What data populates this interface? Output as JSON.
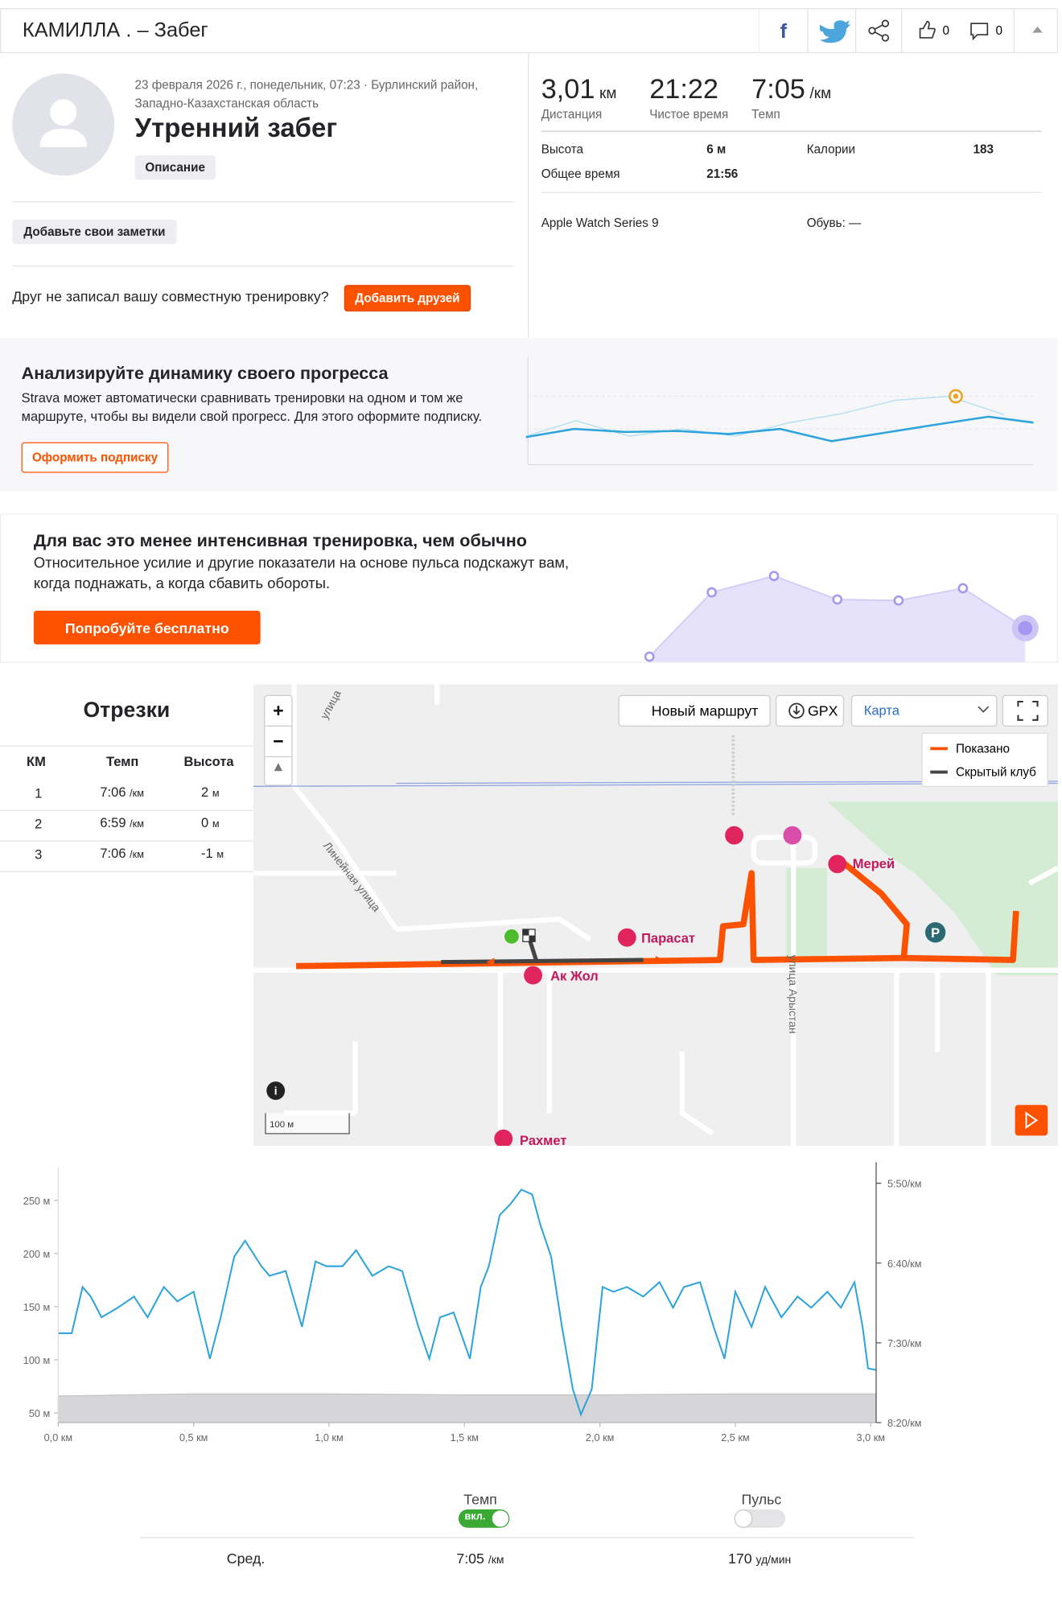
{
  "header": {
    "title": "КАМИЛЛА . – Забег",
    "kudos_count": "0",
    "comments_count": "0"
  },
  "activity": {
    "date_location": "23 февраля 2026 г., понедельник, 07:23 · Бурлинский район, Западно-Казахстанская область",
    "title": "Утренний забег",
    "description_button": "Описание",
    "notes_button": "Добавьте свои заметки",
    "friends_prompt": "Друг не записал вашу совместную тренировку?",
    "friends_button": "Добавить друзей"
  },
  "stats": {
    "primary": [
      {
        "value": "3,01",
        "unit": "км",
        "label": "Дистанция"
      },
      {
        "value": "21:22",
        "label": "Чистое время"
      },
      {
        "value": "7:05",
        "unit": "/км",
        "label": "Темп"
      }
    ],
    "details": [
      {
        "label": "Высота",
        "value": "6 м"
      },
      {
        "label": "Общее время",
        "value": "21:56"
      },
      {
        "label": "Калории",
        "value": "183"
      }
    ],
    "device": "Apple Watch Series 9",
    "shoes": "Обувь: —"
  },
  "progress_promo": {
    "title": "Анализируйте динамику своего прогресса",
    "text": "Strava может автоматически сравнивать тренировки на одном и том же маршруте, чтобы вы видели свой прогресс. Для этого оформите подписку.",
    "button": "Оформить подписку"
  },
  "intensity_promo": {
    "title": "Для вас это менее интенсивная тренировка, чем обычно",
    "text": "Относительное усилие и другие показатели на основе пульса подскажут вам, когда поднажать, а когда сбавить обороты.",
    "button": "Попробуйте бесплатно"
  },
  "splits": {
    "title": "Отрезки",
    "columns": [
      "КМ",
      "Темп",
      "Высота"
    ],
    "rows": [
      {
        "km": "1",
        "pace": "7:06",
        "pace_unit": "/км",
        "elevation": "2",
        "elevation_unit": "м"
      },
      {
        "km": "2",
        "pace": "6:59",
        "pace_unit": "/км",
        "elevation": "0",
        "elevation_unit": "м"
      },
      {
        "km": "3",
        "pace": "7:06",
        "pace_unit": "/км",
        "elevation": "-1",
        "elevation_unit": "м"
      }
    ]
  },
  "map": {
    "buttons": {
      "new_route": "Новый маршрут",
      "gpx": "GPX",
      "map_type": "Карта"
    },
    "legend": [
      "Показано",
      "Скрытый клуб"
    ],
    "places": [
      "Парасат",
      "Ак Жол",
      "Мерей",
      "Рахмет"
    ],
    "streets": [
      "улица",
      "Линейная улица",
      "улица Арыстан"
    ],
    "scale": "100 м"
  },
  "chart_data": {
    "type": "line",
    "x": [
      0,
      0.05,
      0.09,
      0.12,
      0.16,
      0.22,
      0.28,
      0.33,
      0.39,
      0.44,
      0.5,
      0.56,
      0.6,
      0.65,
      0.69,
      0.75,
      0.78,
      0.84,
      0.9,
      0.95,
      0.99,
      1.05,
      1.1,
      1.16,
      1.22,
      1.27,
      1.33,
      1.37,
      1.41,
      1.46,
      1.52,
      1.56,
      1.59,
      1.63,
      1.67,
      1.71,
      1.75,
      1.78,
      1.82,
      1.86,
      1.9,
      1.93,
      1.97,
      2.01,
      2.05,
      2.1,
      2.16,
      2.22,
      2.27,
      2.31,
      2.37,
      2.42,
      2.46,
      2.5,
      2.56,
      2.61,
      2.67,
      2.73,
      2.78,
      2.84,
      2.89,
      2.94,
      2.97,
      2.99,
      3.02
    ],
    "series": [
      {
        "type": "area",
        "color": "#d6d6d8",
        "x": [
          0,
          0.5,
          1.0,
          1.5,
          2.0,
          2.5,
          3.02
        ],
        "values": [
          66,
          68,
          68,
          67,
          67,
          68,
          68
        ]
      },
      {
        "color": "#2ea3dc",
        "axis": "y2",
        "values": [
          444,
          444,
          415,
          421,
          434,
          428,
          421,
          434,
          415,
          424,
          418,
          460,
          434,
          396,
          386,
          402,
          408,
          405,
          440,
          399,
          402,
          402,
          392,
          408,
          402,
          405,
          440,
          460,
          434,
          431,
          460,
          415,
          402,
          370,
          363,
          354,
          357,
          376,
          396,
          440,
          479,
          495,
          479,
          415,
          418,
          415,
          421,
          412,
          428,
          415,
          412,
          440,
          460,
          418,
          440,
          415,
          434,
          421,
          428,
          418,
          428,
          412,
          440,
          466,
          467
        ]
      }
    ],
    "xlim": [
      0,
      3.02
    ],
    "xticks": [
      {
        "value": 0,
        "label": "0,0 км"
      },
      {
        "value": 0.5,
        "label": "0,5 км"
      },
      {
        "value": 1,
        "label": "1,0 км"
      },
      {
        "value": 1.5,
        "label": "1,5 км"
      },
      {
        "value": 2,
        "label": "2,0 км"
      },
      {
        "value": 2.5,
        "label": "2,5 км"
      },
      {
        "value": 3,
        "label": "3,0 км"
      }
    ],
    "ylim": [
      41,
      281
    ],
    "yticks": [
      {
        "value": 50,
        "label": "50 м"
      },
      {
        "value": 100,
        "label": "100 м"
      },
      {
        "value": 150,
        "label": "150 м"
      },
      {
        "value": 200,
        "label": "200 м"
      },
      {
        "value": 250,
        "label": "250 м"
      }
    ],
    "y2lim": [
      500,
      340
    ],
    "y2ticks": [
      {
        "value": 350,
        "label": "5:50/км"
      },
      {
        "value": 400,
        "label": "6:40/км"
      },
      {
        "value": 450,
        "label": "7:30/км"
      },
      {
        "value": 500,
        "label": "8:20/км"
      }
    ]
  },
  "chart_controls": {
    "pace_label": "Темп",
    "pace_state": "вкл.",
    "hr_label": "Пульс"
  },
  "summary": {
    "label": "Сред.",
    "pace": "7:05",
    "pace_unit": "/км",
    "hr": "170",
    "hr_unit": "уд/мин"
  }
}
